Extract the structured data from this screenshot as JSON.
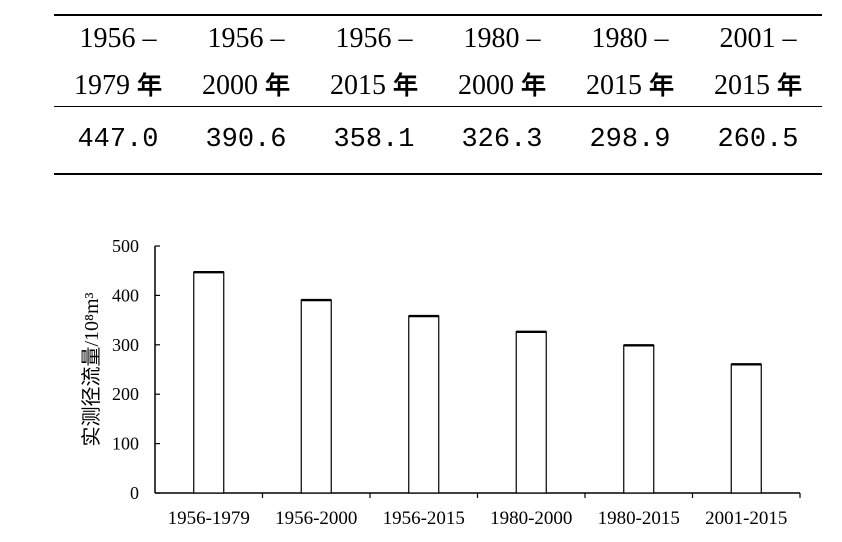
{
  "table": {
    "columns": [
      {
        "line1": "1956 –",
        "line2_year": "1979",
        "line2_suffix": "年",
        "value": "447.0"
      },
      {
        "line1": "1956 –",
        "line2_year": "2000",
        "line2_suffix": "年",
        "value": "390.6"
      },
      {
        "line1": "1956 –",
        "line2_year": "2015",
        "line2_suffix": "年",
        "value": "358.1"
      },
      {
        "line1": "1980 –",
        "line2_year": "2000",
        "line2_suffix": "年",
        "value": "326.3"
      },
      {
        "line1": "1980 –",
        "line2_year": "2015",
        "line2_suffix": "年",
        "value": "298.9"
      },
      {
        "line1": "2001 –",
        "line2_year": "2015",
        "line2_suffix": "年",
        "value": "260.5"
      }
    ]
  },
  "chart_data": {
    "type": "bar",
    "categories": [
      "1956-1979",
      "1956-2000",
      "1956-2015",
      "1980-2000",
      "1980-2015",
      "2001-2015"
    ],
    "values": [
      447.0,
      390.6,
      358.1,
      326.3,
      298.9,
      260.5
    ],
    "ylabel": "实测径流量/10⁸m³",
    "xlabel": "",
    "ylim": [
      0,
      500
    ],
    "yticks": [
      "0",
      "100",
      "200",
      "300",
      "400",
      "500"
    ],
    "grid": false,
    "legend": "none",
    "bar_fill": "#ffffff",
    "bar_stroke": "#000000"
  }
}
